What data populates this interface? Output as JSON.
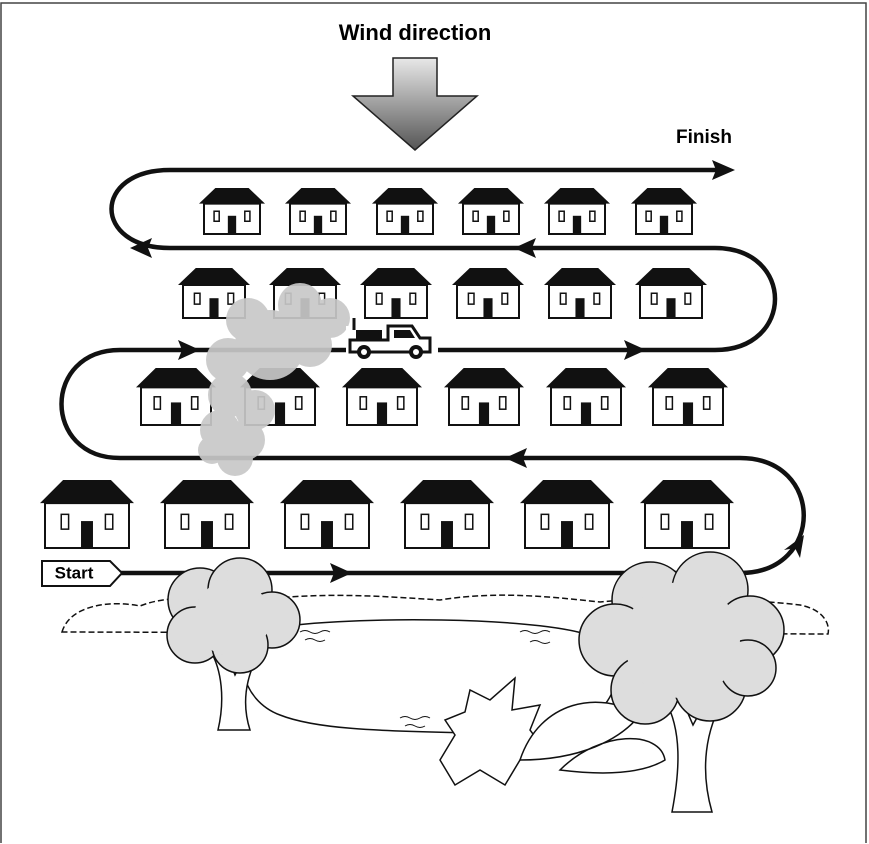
{
  "title": "Wind direction",
  "labels": {
    "finish": "Finish",
    "start": "Start"
  }
}
